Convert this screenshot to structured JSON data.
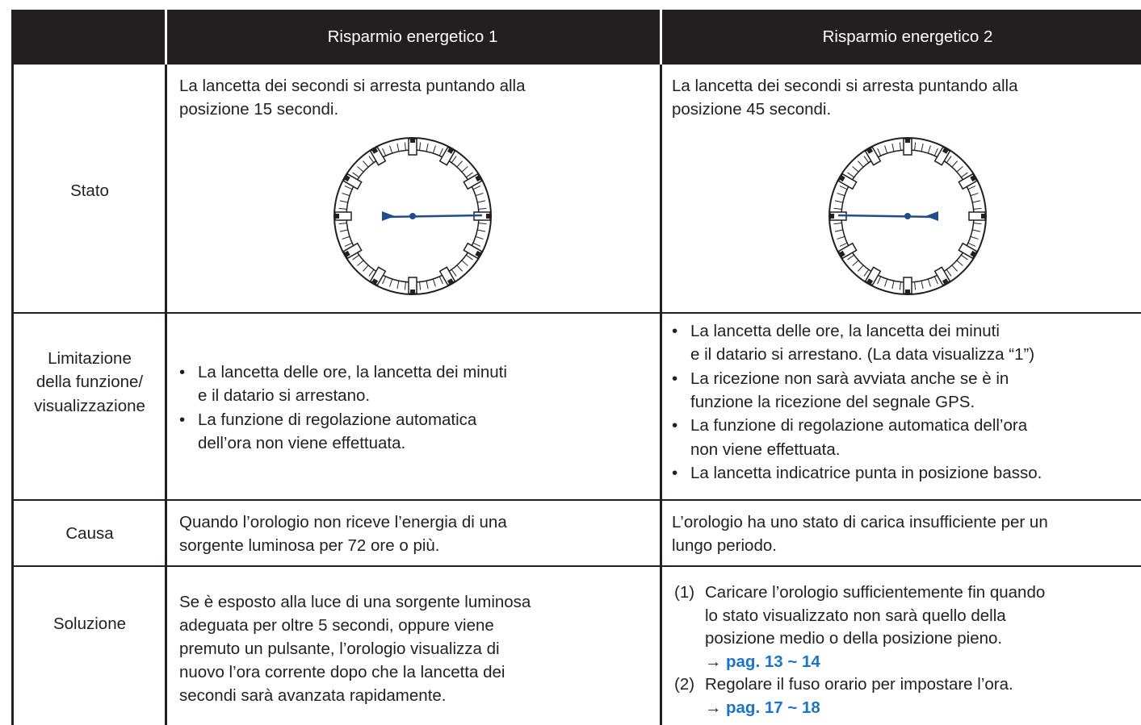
{
  "table": {
    "header": {
      "col1": "Risparmio energetico 1",
      "col2": "Risparmio energetico 2"
    },
    "rows": [
      {
        "label": [
          "Stato"
        ],
        "col1": {
          "lines": [
            "La lancetta dei secondi si arresta puntando alla",
            "posizione 15 secondi."
          ]
        },
        "col2": {
          "lines": [
            "La lancetta dei secondi si arresta puntando alla",
            "posizione 45 secondi."
          ]
        }
      },
      {
        "label": [
          "Limitazione",
          "della funzione/",
          "visualizzazione"
        ],
        "col1": {
          "bullets": [
            [
              "La lancetta delle ore, la lancetta dei minuti",
              "e il datario si arrestano."
            ],
            [
              "La funzione di regolazione automatica",
              "dell’ora non viene effettuata."
            ]
          ]
        },
        "col2": {
          "bullets": [
            [
              "La lancetta delle ore, la lancetta dei minuti",
              "e il datario si arrestano. (La data visualizza “1”)"
            ],
            [
              "La ricezione non sarà avviata anche se è in",
              "funzione la ricezione del segnale GPS."
            ],
            [
              "La funzione di regolazione automatica dell’ora",
              "non viene effettuata."
            ],
            [
              "La lancetta indicatrice punta in posizione basso."
            ]
          ]
        }
      },
      {
        "label": [
          "Causa"
        ],
        "col1": {
          "lines": [
            "Quando l’orologio non riceve l’energia di una",
            "sorgente luminosa per 72 ore o più."
          ]
        },
        "col2": {
          "lines": [
            "L’orologio ha uno stato di carica insufficiente per un",
            "lungo periodo."
          ]
        }
      },
      {
        "label": [
          "Soluzione"
        ],
        "col1": {
          "lines": [
            "Se è esposto alla luce di una sorgente luminosa",
            "adeguata per oltre 5 secondi, oppure viene",
            "premuto un pulsante, l’orologio visualizza di",
            "nuovo l’ora corrente dopo che la lancetta dei",
            "secondi sarà avanzata rapidamente."
          ]
        },
        "col2": {
          "steps": [
            {
              "num": "(1)",
              "lines": [
                "Caricare l’orologio sufficientemente fin quando",
                "lo stato visualizzato non sarà quello della",
                "posizione medio o della posizione pieno."
              ],
              "arrow": "→",
              "ref": "pag. 13 ~ 14"
            },
            {
              "num": "(2)",
              "lines": [
                "Regolare il fuso orario per impostare l’ora."
              ],
              "arrow": "→",
              "ref": "pag. 17 ~ 18"
            }
          ]
        }
      }
    ]
  }
}
